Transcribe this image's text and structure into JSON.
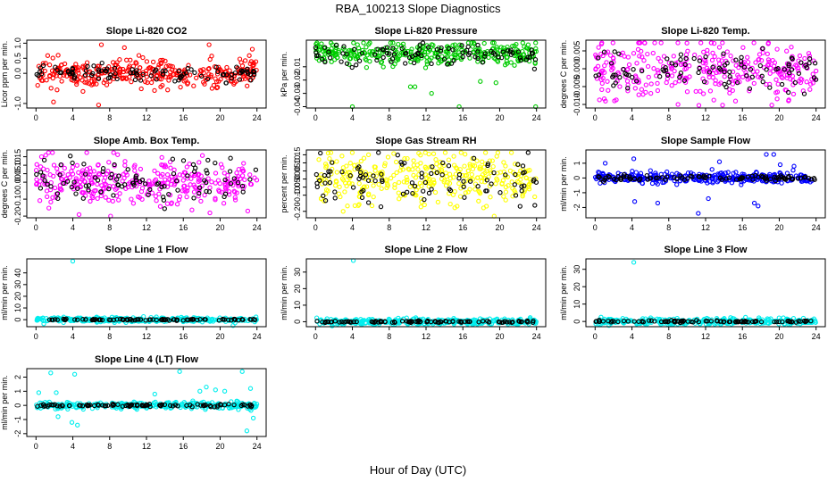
{
  "figure": {
    "title": "RBA_100213  Slope Diagnostics",
    "xlabel": "Hour of Day (UTC)",
    "grid": false,
    "layout": "4 rows x 3 columns of scatter panels; last row has one panel"
  },
  "chart_data": [
    {
      "type": "scatter",
      "title": "Slope Li-820 CO2",
      "ylabel": "Licor ppm per min.",
      "xlim": [
        -1,
        25
      ],
      "ylim": [
        -1.15,
        1.1
      ],
      "xticks": [
        0,
        4,
        8,
        12,
        16,
        20,
        24
      ],
      "yticks": [
        -1.0,
        0.0,
        0.5,
        1.0
      ],
      "ytick_labels": [
        "-1.0",
        "0.0",
        "0.5",
        "1.0"
      ],
      "series": [
        {
          "color": "#ff0000",
          "noise": 0.22,
          "n": 330,
          "outliers_x": [
            1.9,
            5.1,
            6.8,
            7.1,
            9.6,
            14.3,
            18.8,
            23.5
          ],
          "outliers_y": [
            -0.95,
            -0.6,
            -1.05,
            0.95,
            0.85,
            -0.55,
            0.95,
            0.8
          ]
        },
        {
          "color": "#000000",
          "noise": 0.15,
          "n": 95,
          "outliers_x": [],
          "outliers_y": []
        }
      ]
    },
    {
      "type": "scatter",
      "title": "Slope Li-820 Pressure",
      "ylabel": "kPa per min.",
      "xlim": [
        -1,
        25
      ],
      "ylim": [
        -0.041,
        0.01
      ],
      "xticks": [
        0,
        4,
        8,
        12,
        16,
        20,
        24
      ],
      "yticks": [
        -0.04,
        -0.03,
        -0.02,
        -0.01
      ],
      "ytick_labels": [
        "-0.04",
        "-0.03",
        "-0.02",
        "-0.01"
      ],
      "series": [
        {
          "color": "#00cc00",
          "noise": 0.004,
          "n": 330,
          "outliers_x": [
            4.0,
            10.3,
            10.8,
            12.6,
            15.6,
            17.9,
            19.6,
            23.9
          ],
          "outliers_y": [
            -0.04,
            -0.025,
            -0.025,
            -0.03,
            -0.04,
            -0.021,
            -0.022,
            -0.04
          ]
        },
        {
          "color": "#000000",
          "noise": 0.004,
          "n": 95,
          "outliers_x": [],
          "outliers_y": []
        }
      ]
    },
    {
      "type": "scatter",
      "title": "Slope Li-820 Temp.",
      "ylabel": "degrees C per min.",
      "xlim": [
        -1,
        25
      ],
      "ylim": [
        -0.011,
        0.008
      ],
      "xticks": [
        0,
        4,
        8,
        12,
        16,
        20,
        24
      ],
      "yticks": [
        -0.01,
        -0.005,
        0.0,
        0.005
      ],
      "ytick_labels": [
        "-0.010",
        "-0.005",
        "0.000",
        "0.005"
      ],
      "series": [
        {
          "color": "#ff00ff",
          "noise": 0.004,
          "n": 330,
          "outliers_x": [
            18.8,
            2.1,
            9.0,
            13.5,
            21.0
          ],
          "outliers_y": [
            0.007,
            -0.009,
            -0.01,
            0.006,
            -0.009
          ]
        },
        {
          "color": "#000000",
          "noise": 0.003,
          "n": 95,
          "outliers_x": [],
          "outliers_y": []
        }
      ]
    },
    {
      "type": "scatter",
      "title": "Slope Amb. Box Temp.",
      "ylabel": "degrees C per min.",
      "xlim": [
        -1,
        25
      ],
      "ylim": [
        -0.21,
        0.19
      ],
      "xticks": [
        0,
        4,
        8,
        12,
        16,
        20,
        24
      ],
      "yticks": [
        -0.2,
        -0.1,
        0.0,
        0.05,
        0.1,
        0.15
      ],
      "ytick_labels": [
        "-0.20",
        "-0.10",
        "0.00",
        "0.05",
        "0.10",
        "0.15"
      ],
      "series": [
        {
          "color": "#ff00ff",
          "noise": 0.07,
          "n": 330,
          "outliers_x": [
            8.1,
            0.6,
            23.0
          ],
          "outliers_y": [
            -0.2,
            0.15,
            -0.17
          ]
        },
        {
          "color": "#000000",
          "noise": 0.07,
          "n": 95,
          "outliers_x": [],
          "outliers_y": []
        }
      ]
    },
    {
      "type": "scatter",
      "title": "Slope Gas Stream RH",
      "ylabel": "percent per min.",
      "xlim": [
        -1,
        25
      ],
      "ylim": [
        -0.24,
        0.18
      ],
      "xticks": [
        0,
        4,
        8,
        12,
        16,
        20,
        24
      ],
      "yticks": [
        -0.2,
        -0.1,
        -0.05,
        0.0,
        0.05,
        0.1,
        0.15
      ],
      "ytick_labels": [
        "-0.20",
        "-0.10",
        "-0.05",
        "0.00",
        "0.05",
        "0.10",
        "0.15"
      ],
      "series": [
        {
          "color": "#ffff00",
          "noise": 0.075,
          "n": 330,
          "outliers_x": [
            19.4,
            11.2,
            3.0
          ],
          "outliers_y": [
            -0.23,
            0.16,
            -0.2
          ]
        },
        {
          "color": "#000000",
          "noise": 0.07,
          "n": 95,
          "outliers_x": [],
          "outliers_y": []
        }
      ]
    },
    {
      "type": "scatter",
      "title": "Slope Sample Flow",
      "ylabel": "ml/min per min.",
      "xlim": [
        -1,
        25
      ],
      "ylim": [
        -2.7,
        1.9
      ],
      "xticks": [
        0,
        4,
        8,
        12,
        16,
        20,
        24
      ],
      "yticks": [
        -2,
        -1,
        0,
        1
      ],
      "ytick_labels": [
        "-2",
        "-1",
        "0",
        "1"
      ],
      "series": [
        {
          "color": "#0000ff",
          "noise": 0.18,
          "n": 330,
          "outliers_x": [
            1.1,
            4.2,
            4.3,
            6.8,
            11.2,
            12.3,
            13.5,
            17.3,
            17.7,
            18.6,
            19.4,
            20.1,
            21.6
          ],
          "outliers_y": [
            1.0,
            1.3,
            -1.6,
            -1.7,
            -2.4,
            -1.4,
            1.1,
            -1.7,
            -1.9,
            1.6,
            1.6,
            0.9,
            0.8
          ]
        },
        {
          "color": "#000000",
          "noise": 0.1,
          "n": 95,
          "outliers_x": [],
          "outliers_y": []
        }
      ]
    },
    {
      "type": "scatter",
      "title": "Slope Line 1 Flow",
      "ylabel": "ml/min per min.",
      "xlim": [
        -1,
        25
      ],
      "ylim": [
        -6,
        52
      ],
      "xticks": [
        0,
        4,
        8,
        12,
        16,
        20,
        24
      ],
      "yticks": [
        0,
        10,
        20,
        30,
        40
      ],
      "ytick_labels": [
        "0",
        "10",
        "20",
        "30",
        "40"
      ],
      "series": [
        {
          "color": "#00eeee",
          "noise": 1.0,
          "n": 330,
          "outliers_x": [
            4.0,
            21.4
          ],
          "outliers_y": [
            50,
            -5
          ]
        },
        {
          "color": "#000000",
          "noise": 0.3,
          "n": 95,
          "outliers_x": [],
          "outliers_y": []
        }
      ]
    },
    {
      "type": "scatter",
      "title": "Slope Line 2 Flow",
      "ylabel": "ml/min per min.",
      "xlim": [
        -1,
        25
      ],
      "ylim": [
        -3,
        38
      ],
      "xticks": [
        0,
        4,
        8,
        12,
        16,
        20,
        24
      ],
      "yticks": [
        0,
        10,
        20,
        30
      ],
      "ytick_labels": [
        "0",
        "10",
        "20",
        "30"
      ],
      "series": [
        {
          "color": "#00eeee",
          "noise": 0.9,
          "n": 330,
          "outliers_x": [
            4.1,
            1.8
          ],
          "outliers_y": [
            37,
            -2.5
          ]
        },
        {
          "color": "#000000",
          "noise": 0.3,
          "n": 95,
          "outliers_x": [],
          "outliers_y": []
        }
      ]
    },
    {
      "type": "scatter",
      "title": "Slope Line 3 Flow",
      "ylabel": "ml/min per min.",
      "xlim": [
        -1,
        25
      ],
      "ylim": [
        -3,
        36
      ],
      "xticks": [
        0,
        4,
        8,
        12,
        16,
        20,
        24
      ],
      "yticks": [
        0,
        10,
        20,
        30
      ],
      "ytick_labels": [
        "0",
        "10",
        "20",
        "30"
      ],
      "series": [
        {
          "color": "#00eeee",
          "noise": 0.9,
          "n": 330,
          "outliers_x": [
            4.2,
            1.5
          ],
          "outliers_y": [
            34,
            -2.3
          ]
        },
        {
          "color": "#000000",
          "noise": 0.3,
          "n": 95,
          "outliers_x": [],
          "outliers_y": []
        }
      ]
    },
    {
      "type": "scatter",
      "title": "Slope Line 4 (LT) Flow",
      "ylabel": "ml/min per min.",
      "xlim": [
        -1,
        25
      ],
      "ylim": [
        -2.2,
        2.6
      ],
      "xticks": [
        0,
        4,
        8,
        12,
        16,
        20,
        24
      ],
      "yticks": [
        -2,
        -1,
        0,
        1,
        2
      ],
      "ytick_labels": [
        "-2",
        "-1",
        "0",
        "1",
        "2"
      ],
      "series": [
        {
          "color": "#00eeee",
          "noise": 0.12,
          "n": 330,
          "outliers_x": [
            1.6,
            2.2,
            2.4,
            4.2,
            4.5,
            0.3,
            12.9,
            15.6,
            18.5,
            19.5,
            20.5,
            22.4,
            22.9,
            23.3,
            23.6,
            3.9,
            17.8
          ],
          "outliers_y": [
            2.3,
            0.9,
            -0.8,
            2.2,
            -1.4,
            0.9,
            0.8,
            2.4,
            1.3,
            1.1,
            1.0,
            2.4,
            -1.8,
            1.2,
            -0.9,
            -1.2,
            1.0
          ]
        },
        {
          "color": "#000000",
          "noise": 0.05,
          "n": 95,
          "outliers_x": [],
          "outliers_y": []
        }
      ]
    }
  ]
}
